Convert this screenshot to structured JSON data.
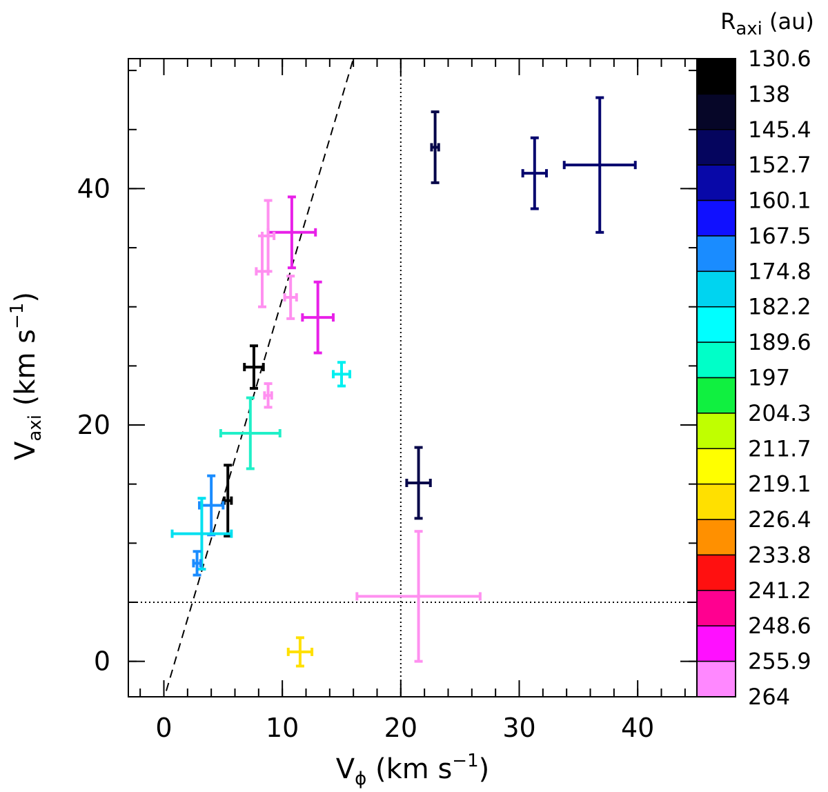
{
  "chart_data": {
    "type": "scatter",
    "xlabel": "Vϕ (km s−1)",
    "xlabel_parts": {
      "main": "V",
      "sub": "ϕ",
      "rest": " (km s",
      "sup": "−1",
      "close": ")"
    },
    "ylabel": "Vaxi (km s−1)",
    "ylabel_parts": {
      "main": "V",
      "sub": "axi",
      "rest": " (km s",
      "sup": "−1",
      "close": ")"
    },
    "xlim": [
      -3,
      45
    ],
    "ylim": [
      -3,
      51
    ],
    "xticks": [
      0,
      10,
      20,
      30,
      40
    ],
    "xtick_labels": [
      "0",
      "10",
      "20",
      "30",
      "40"
    ],
    "yticks": [
      0,
      20,
      40
    ],
    "ytick_labels": [
      "0",
      "20",
      "40"
    ],
    "x_minor_step": 2,
    "y_minor_step": 5,
    "reference_lines": [
      {
        "type": "dashed",
        "from": [
          0.2,
          -2.5
        ],
        "to": [
          16,
          51
        ]
      },
      {
        "type": "dotted-vertical",
        "x": 20
      },
      {
        "type": "dotted-horizontal",
        "y": 5
      }
    ],
    "colorbar": {
      "title": "Raxi (au)",
      "title_parts": {
        "main": "R",
        "sub": "axi",
        "rest": " (au)"
      },
      "labels": [
        "130.6",
        "138",
        "145.4",
        "152.7",
        "160.1",
        "167.5",
        "174.8",
        "182.2",
        "189.6",
        "197",
        "204.3",
        "211.7",
        "219.1",
        "226.4",
        "233.8",
        "241.2",
        "248.6",
        "255.9",
        "264"
      ],
      "colors": [
        "#000000",
        "#060628",
        "#05055e",
        "#0808a8",
        "#1010ff",
        "#1a8cff",
        "#00d4f0",
        "#00ffff",
        "#00ffc8",
        "#10f040",
        "#c0ff00",
        "#ffff00",
        "#ffe000",
        "#ff9000",
        "#ff1010",
        "#ff0090",
        "#ff10ff",
        "#ff88ff"
      ]
    },
    "points": [
      {
        "x": 22.9,
        "xerr": [
          0.3,
          0.3
        ],
        "y": 43.5,
        "yerr": [
          3.0,
          3.0
        ],
        "color": "#06064a"
      },
      {
        "x": 31.3,
        "xerr": [
          1.0,
          1.0
        ],
        "y": 41.3,
        "yerr": [
          3.0,
          3.0
        ],
        "color": "#05056e"
      },
      {
        "x": 36.8,
        "xerr": [
          3.0,
          3.0
        ],
        "y": 42.0,
        "yerr": [
          5.7,
          5.7
        ],
        "color": "#05056e"
      },
      {
        "x": 21.5,
        "xerr": [
          1.0,
          1.0
        ],
        "y": 15.1,
        "yerr": [
          3.0,
          3.0
        ],
        "color": "#06064a"
      },
      {
        "x": 21.5,
        "xerr": [
          5.2,
          5.2
        ],
        "y": 5.5,
        "yerr": [
          5.5,
          5.5
        ],
        "color": "#ff90f0"
      },
      {
        "x": 11.5,
        "xerr": [
          1.0,
          1.0
        ],
        "y": 0.8,
        "yerr": [
          1.2,
          1.2
        ],
        "color": "#ffe000"
      },
      {
        "x": 10.8,
        "xerr": [
          2.0,
          2.0
        ],
        "y": 36.3,
        "yerr": [
          3.0,
          3.0
        ],
        "color": "#e820e8"
      },
      {
        "x": 8.8,
        "xerr": [
          0.5,
          0.5
        ],
        "y": 36.0,
        "yerr": [
          3.0,
          3.0
        ],
        "color": "#ff90f0"
      },
      {
        "x": 8.3,
        "xerr": [
          0.5,
          0.5
        ],
        "y": 33.0,
        "yerr": [
          3.0,
          3.0
        ],
        "color": "#ff90f0"
      },
      {
        "x": 10.7,
        "xerr": [
          0.5,
          0.5
        ],
        "y": 30.8,
        "yerr": [
          1.8,
          1.8
        ],
        "color": "#ff90f0"
      },
      {
        "x": 13.0,
        "xerr": [
          1.3,
          1.3
        ],
        "y": 29.1,
        "yerr": [
          3.0,
          3.0
        ],
        "color": "#e820e8"
      },
      {
        "x": 15.0,
        "xerr": [
          0.7,
          0.7
        ],
        "y": 24.3,
        "yerr": [
          1.0,
          1.0
        ],
        "color": "#00f0f0"
      },
      {
        "x": 7.6,
        "xerr": [
          0.8,
          0.8
        ],
        "y": 24.9,
        "yerr": [
          1.8,
          1.8
        ],
        "color": "#000000"
      },
      {
        "x": 8.8,
        "xerr": [
          0.3,
          0.3
        ],
        "y": 22.5,
        "yerr": [
          1.0,
          1.0
        ],
        "color": "#ff90f0"
      },
      {
        "x": 7.3,
        "xerr": [
          2.5,
          2.5
        ],
        "y": 19.3,
        "yerr": [
          3.0,
          3.0
        ],
        "color": "#20f0c8"
      },
      {
        "x": 5.4,
        "xerr": [
          0.3,
          0.3
        ],
        "y": 13.6,
        "yerr": [
          3.0,
          3.0
        ],
        "color": "#000000"
      },
      {
        "x": 4.0,
        "xerr": [
          1.0,
          1.0
        ],
        "y": 13.2,
        "yerr": [
          2.5,
          2.5
        ],
        "color": "#1a8cff"
      },
      {
        "x": 3.2,
        "xerr": [
          2.5,
          2.5
        ],
        "y": 10.8,
        "yerr": [
          3.0,
          3.0
        ],
        "color": "#00e0f0"
      },
      {
        "x": 2.8,
        "xerr": [
          0.3,
          0.3
        ],
        "y": 8.3,
        "yerr": [
          1.0,
          1.0
        ],
        "color": "#1a8cff"
      }
    ]
  }
}
